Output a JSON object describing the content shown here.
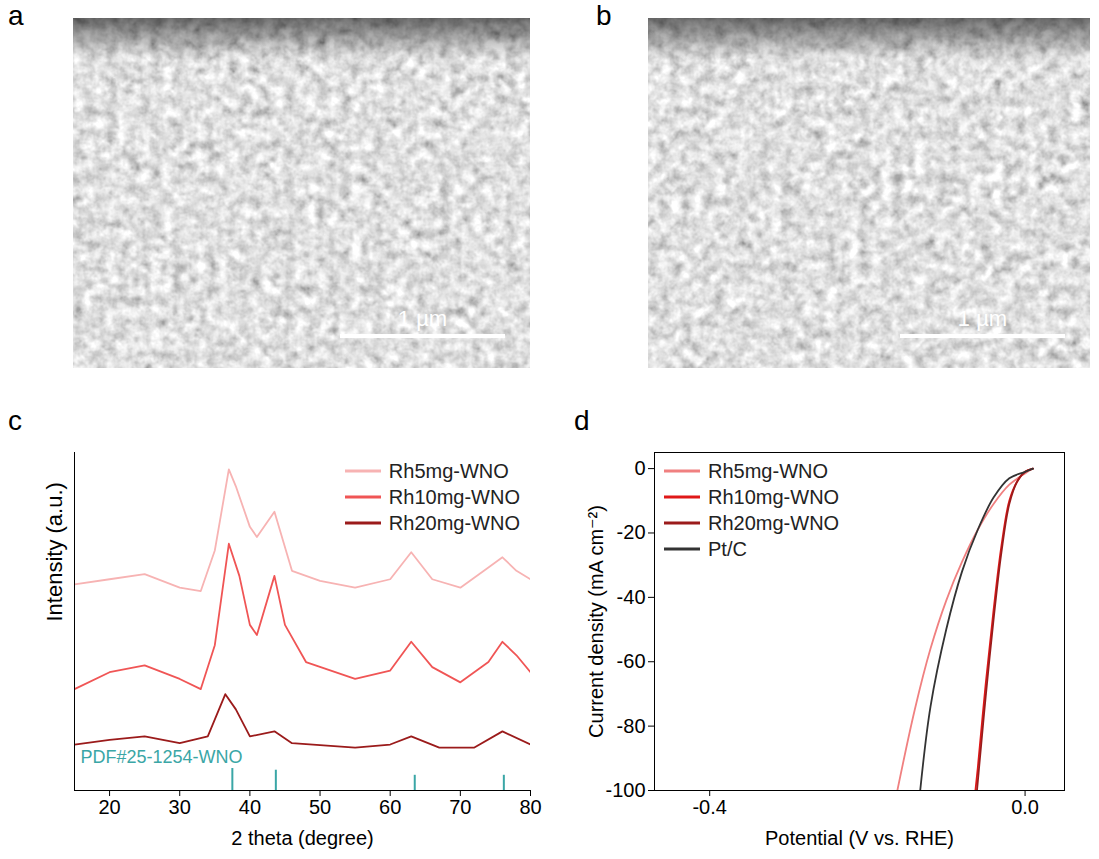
{
  "images": [
    {
      "panel": "a",
      "scale_bar": "1 µm"
    },
    {
      "panel": "b",
      "scale_bar": "1 µm"
    }
  ],
  "chart_data": [
    {
      "panel": "c",
      "type": "line",
      "x_label": "2 theta (degree)",
      "y_label": "Intensity (a.u.)",
      "xlim": [
        15,
        80
      ],
      "xticks": [
        20,
        30,
        40,
        50,
        60,
        70,
        80
      ],
      "ylim": [
        0,
        100
      ],
      "yticks": [],
      "tick_labels": "x",
      "legend": "upper right",
      "series": [
        {
          "name": "Rh5mg-WNO",
          "color": "#f7b3b3",
          "x": [
            15,
            20,
            25,
            30,
            33,
            35,
            37,
            38,
            40,
            41,
            43.5,
            46,
            50,
            55,
            60,
            63,
            66,
            70,
            74,
            76,
            78,
            80
          ],
          "values": [
            61,
            62.5,
            64,
            60,
            59,
            71,
            95,
            90,
            78,
            75,
            82.5,
            65,
            62,
            60,
            62.5,
            70.5,
            62.5,
            60,
            66,
            69,
            65,
            62.5
          ]
        },
        {
          "name": "Rh10mg-WNO",
          "color": "#f05555",
          "x": [
            15,
            20,
            25,
            30,
            33,
            35,
            37,
            38.5,
            40,
            41,
            43.5,
            45,
            48,
            55,
            60,
            63,
            66,
            70,
            74,
            76,
            78,
            80
          ],
          "values": [
            30,
            35,
            37,
            33,
            30,
            43,
            73,
            63.5,
            49,
            46,
            63.5,
            49,
            38,
            33,
            35.5,
            44,
            36.5,
            32,
            38,
            44,
            40,
            35
          ]
        },
        {
          "name": "Rh20mg-WNO",
          "color": "#9b1b1b",
          "x": [
            15,
            20,
            25,
            30,
            34,
            36.5,
            38,
            40,
            43.5,
            46,
            55,
            60,
            63,
            67,
            72,
            76,
            80
          ],
          "values": [
            13.6,
            15,
            16,
            14,
            16,
            28.5,
            24,
            16,
            17.5,
            14,
            12.7,
            13.6,
            16,
            12.7,
            12.7,
            17.5,
            13.6
          ]
        },
        {
          "name": "PDF#25-1254-WNO",
          "color": "#3aa6a6",
          "type": "bar",
          "x": [
            37.5,
            43.7,
            63.5,
            76.2
          ],
          "values": [
            6.5,
            6,
            4.5,
            4.5
          ]
        }
      ]
    },
    {
      "panel": "d",
      "type": "line",
      "x_label": "Potential (V vs. RHE)",
      "y_label": "Current density (mA cm⁻²)",
      "xlim": [
        -0.47,
        0.05
      ],
      "xticks": [
        -0.4,
        {
          "value": 0,
          "label": "0.0"
        }
      ],
      "ylim": [
        -100,
        5
      ],
      "yticks": [
        0,
        -20,
        -40,
        -60,
        -80,
        -100
      ],
      "legend": "upper left",
      "series": [
        {
          "name": "Rh5mg-WNO",
          "color": "#f08080",
          "x": [
            0.01,
            0,
            -0.02,
            -0.04,
            -0.06,
            -0.08,
            -0.1,
            -0.12,
            -0.14,
            -0.162
          ],
          "values": [
            0,
            -1.5,
            -5,
            -11,
            -19,
            -29,
            -41,
            -56,
            -75,
            -100
          ]
        },
        {
          "name": "Rh10mg-WNO",
          "color": "#e01818",
          "x": [
            0.01,
            0,
            -0.01,
            -0.02,
            -0.03,
            -0.04,
            -0.05,
            -0.06,
            -0.063
          ],
          "values": [
            0,
            -1,
            -4,
            -10,
            -24,
            -44,
            -67,
            -93,
            -100
          ]
        },
        {
          "name": "Rh20mg-WNO",
          "color": "#9b1b1b",
          "x": [
            0.01,
            0,
            -0.01,
            -0.02,
            -0.03,
            -0.04,
            -0.05,
            -0.058,
            -0.061
          ],
          "values": [
            0,
            -1,
            -4,
            -11,
            -26,
            -47,
            -71,
            -92,
            -100
          ]
        },
        {
          "name": "Pt/C",
          "color": "#333333",
          "x": [
            0.01,
            0,
            -0.02,
            -0.04,
            -0.06,
            -0.08,
            -0.1,
            -0.12,
            -0.133
          ],
          "values": [
            0,
            -1,
            -3,
            -9,
            -19,
            -32,
            -50,
            -74,
            -100
          ]
        }
      ]
    }
  ]
}
